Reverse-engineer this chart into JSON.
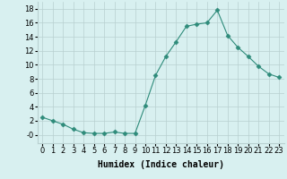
{
  "x": [
    0,
    1,
    2,
    3,
    4,
    5,
    6,
    7,
    8,
    9,
    10,
    11,
    12,
    13,
    14,
    15,
    16,
    17,
    18,
    19,
    20,
    21,
    22,
    23
  ],
  "y": [
    2.5,
    2.0,
    1.5,
    0.8,
    0.3,
    0.2,
    0.2,
    0.4,
    0.2,
    0.2,
    4.2,
    8.5,
    11.2,
    13.3,
    15.5,
    15.8,
    16.0,
    17.8,
    14.2,
    12.5,
    11.2,
    9.8,
    8.7,
    8.2
  ],
  "line_color": "#2e8b7a",
  "marker": "D",
  "marker_size": 2.5,
  "bg_color": "#d8f0f0",
  "grid_color": "#b8d0d0",
  "xlabel": "Humidex (Indice chaleur)",
  "xlabel_fontsize": 7,
  "tick_fontsize": 6,
  "ylim": [
    -1.2,
    19
  ],
  "xlim": [
    -0.5,
    23.5
  ],
  "yticks": [
    0,
    2,
    4,
    6,
    8,
    10,
    12,
    14,
    16,
    18
  ],
  "ytick_labels": [
    "-0",
    "2",
    "4",
    "6",
    "8",
    "10",
    "12",
    "14",
    "16",
    "18"
  ],
  "xticks": [
    0,
    1,
    2,
    3,
    4,
    5,
    6,
    7,
    8,
    9,
    10,
    11,
    12,
    13,
    14,
    15,
    16,
    17,
    18,
    19,
    20,
    21,
    22,
    23
  ]
}
